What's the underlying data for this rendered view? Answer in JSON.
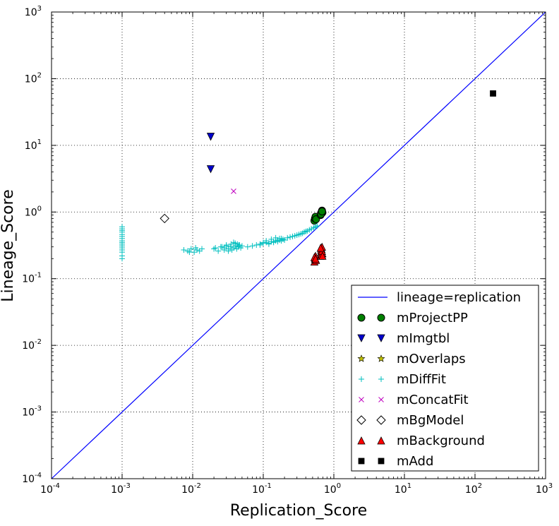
{
  "chart_data": {
    "type": "scatter",
    "xlabel": "Replication_Score",
    "ylabel": "Lineage_Score",
    "x_scale": "log",
    "y_scale": "log",
    "xlim": [
      0.0001,
      1000
    ],
    "ylim": [
      0.0001,
      1000
    ],
    "x_ticks": [
      "10",
      "10",
      "10",
      "10",
      "10",
      "10",
      "10",
      "10"
    ],
    "x_tick_exponents": [
      "-4",
      "-3",
      "-2",
      "-1",
      "0",
      "1",
      "2",
      "3"
    ],
    "y_ticks": [
      "10",
      "10",
      "10",
      "10",
      "10",
      "10",
      "10",
      "10"
    ],
    "y_tick_exponents": [
      "-4",
      "-3",
      "-2",
      "-1",
      "0",
      "1",
      "2",
      "3"
    ],
    "grid": true,
    "legend_position": "bottom-right",
    "series": [
      {
        "name": "lineage=replication",
        "kind": "line",
        "color": "#0000ff",
        "x": [
          0.0001,
          1000
        ],
        "y": [
          0.0001,
          1000
        ]
      },
      {
        "name": "mProjectPP",
        "marker": "circle",
        "color": "#008000",
        "x": [
          0.53,
          0.54,
          0.55,
          0.56,
          0.65,
          0.66,
          0.67,
          0.68,
          0.69,
          0.66,
          0.68
        ],
        "y": [
          0.74,
          0.8,
          0.85,
          0.78,
          0.9,
          0.95,
          1.0,
          1.05,
          0.98,
          0.93,
          1.02
        ]
      },
      {
        "name": "mImgtbl",
        "marker": "triangle-down",
        "color": "#0000cc",
        "x": [
          0.018,
          0.018
        ],
        "y": [
          13.5,
          4.4
        ]
      },
      {
        "name": "mOverlaps",
        "marker": "star",
        "color": "#bfbf00",
        "x": [],
        "y": []
      },
      {
        "name": "mDiffFit",
        "marker": "plus",
        "color": "#00bfbf",
        "x": [
          0.001,
          0.001,
          0.001,
          0.001,
          0.001,
          0.001,
          0.001,
          0.001,
          0.001,
          0.001,
          0.001,
          0.001,
          0.001,
          0.001,
          0.001,
          0.001,
          0.0075,
          0.0085,
          0.0095,
          0.0105,
          0.0115,
          0.0125,
          0.0135,
          0.009,
          0.011,
          0.02,
          0.023,
          0.026,
          0.028,
          0.03,
          0.032,
          0.034,
          0.036,
          0.038,
          0.04,
          0.042,
          0.044,
          0.046,
          0.048,
          0.05,
          0.021,
          0.025,
          0.03,
          0.035,
          0.04,
          0.045,
          0.032,
          0.038,
          0.043,
          0.028,
          0.06,
          0.07,
          0.08,
          0.09,
          0.1,
          0.11,
          0.12,
          0.13,
          0.14,
          0.15,
          0.16,
          0.17,
          0.18,
          0.19,
          0.2,
          0.09,
          0.1,
          0.12,
          0.14,
          0.16,
          0.18,
          0.11,
          0.13,
          0.15,
          0.17,
          0.22,
          0.24,
          0.26,
          0.28,
          0.3,
          0.32,
          0.34,
          0.36,
          0.38,
          0.4,
          0.42,
          0.45,
          0.48,
          0.52,
          0.55,
          0.58
        ],
        "y": [
          0.2,
          0.22,
          0.25,
          0.27,
          0.29,
          0.31,
          0.33,
          0.35,
          0.37,
          0.4,
          0.43,
          0.46,
          0.5,
          0.53,
          0.56,
          0.6,
          0.27,
          0.26,
          0.28,
          0.25,
          0.27,
          0.26,
          0.28,
          0.25,
          0.29,
          0.28,
          0.26,
          0.3,
          0.27,
          0.31,
          0.28,
          0.3,
          0.27,
          0.29,
          0.31,
          0.28,
          0.3,
          0.32,
          0.29,
          0.31,
          0.29,
          0.3,
          0.32,
          0.33,
          0.34,
          0.32,
          0.26,
          0.35,
          0.33,
          0.29,
          0.3,
          0.31,
          0.32,
          0.33,
          0.34,
          0.35,
          0.33,
          0.36,
          0.35,
          0.37,
          0.36,
          0.38,
          0.37,
          0.39,
          0.38,
          0.32,
          0.35,
          0.34,
          0.36,
          0.38,
          0.4,
          0.37,
          0.39,
          0.41,
          0.4,
          0.41,
          0.42,
          0.43,
          0.44,
          0.45,
          0.46,
          0.47,
          0.48,
          0.5,
          0.51,
          0.52,
          0.54,
          0.56,
          0.58,
          0.6,
          0.62
        ]
      },
      {
        "name": "mConcatFit",
        "marker": "x",
        "color": "#bf00bf",
        "x": [
          0.038
        ],
        "y": [
          2.05
        ]
      },
      {
        "name": "mBgModel",
        "marker": "diamond-open",
        "color": "#000000",
        "x": [
          0.004
        ],
        "y": [
          0.8
        ]
      },
      {
        "name": "mBackground",
        "marker": "triangle-up",
        "color": "#ff0000",
        "x": [
          0.53,
          0.54,
          0.55,
          0.56,
          0.53,
          0.55,
          0.65,
          0.66,
          0.67,
          0.68,
          0.69,
          0.66,
          0.67,
          0.68,
          0.65,
          0.69
        ],
        "y": [
          0.18,
          0.2,
          0.22,
          0.19,
          0.21,
          0.2,
          0.22,
          0.25,
          0.28,
          0.3,
          0.24,
          0.27,
          0.23,
          0.26,
          0.29,
          0.22
        ]
      },
      {
        "name": "mAdd",
        "marker": "square",
        "color": "#000000",
        "x": [
          180
        ],
        "y": [
          60
        ]
      }
    ]
  }
}
